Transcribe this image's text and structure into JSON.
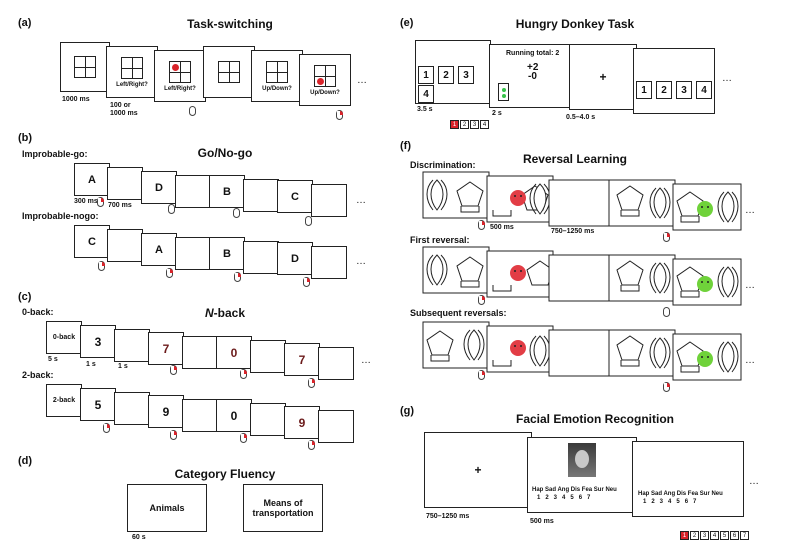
{
  "panels": {
    "a": {
      "label": "(a)",
      "title": "Task-switching",
      "times": [
        "1000 ms",
        "100 or",
        "1000 ms"
      ],
      "prompts": [
        "Left/Right?",
        "Left/Right?",
        "Up/Down?",
        "Up/Down?"
      ],
      "ellipsis": "…"
    },
    "b": {
      "label": "(b)",
      "title": "Go/No-go",
      "rows": [
        "Improbable-go:",
        "Improbable-nogo:"
      ],
      "row1": [
        "A",
        "D",
        "B",
        "C"
      ],
      "row2": [
        "C",
        "A",
        "B",
        "D"
      ],
      "times": [
        "300 ms",
        "700 ms"
      ],
      "ellipsis": "…"
    },
    "c": {
      "label": "(c)",
      "title_italic": "N",
      "title_rest": "-back",
      "rows": [
        "0-back:",
        "2-back:"
      ],
      "row1": [
        "0-back",
        "3",
        "7",
        "0",
        "7"
      ],
      "row2": [
        "2-back",
        "5",
        "9",
        "0",
        "9"
      ],
      "times": [
        "5 s",
        "1 s",
        "1 s"
      ],
      "ellipsis": "…"
    },
    "d": {
      "label": "(d)",
      "title": "Category Fluency",
      "cards": [
        "Animals",
        "Means of transportation"
      ],
      "time": "60 s"
    },
    "e": {
      "label": "(e)",
      "title": "Hungry Donkey Task",
      "doors": [
        "1",
        "2",
        "3",
        "4"
      ],
      "running_total": "Running total: 2",
      "plus": "+2",
      "minus": "-0",
      "fixation": "+",
      "times": [
        "3.5 s",
        "2 s",
        "0.5–4.0 s"
      ],
      "ellipsis": "…"
    },
    "f": {
      "label": "(f)",
      "title": "Reversal Learning",
      "rows": [
        "Discrimination:",
        "First reversal:",
        "Subsequent reversals:"
      ],
      "times": [
        "500 ms",
        "750–1250 ms"
      ],
      "ellipsis": "…"
    },
    "g": {
      "label": "(g)",
      "title": "Facial Emotion Recognition",
      "fixation": "+",
      "emotions": "Hap Sad Ang Dis Fea Sur Neu",
      "numbers": "1   2   3   4   5   6   7",
      "keys": [
        "1",
        "2",
        "3",
        "4",
        "5",
        "6",
        "7"
      ],
      "times": [
        "750–1250 ms",
        "500 ms"
      ],
      "ellipsis": "…"
    }
  },
  "colors": {
    "accent_red": "#d9232a",
    "sad_face": "#e23d45",
    "happy_face": "#6fd23a",
    "feedback_green": "#38c24a"
  }
}
